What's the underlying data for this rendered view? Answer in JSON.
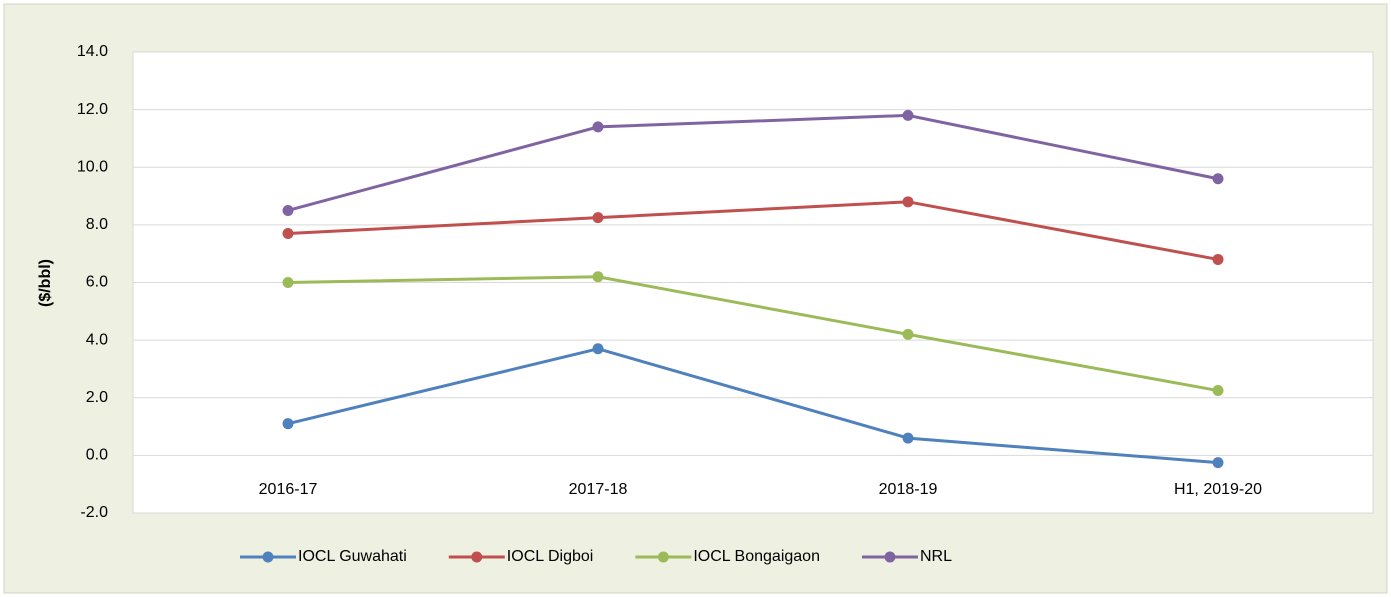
{
  "chart_data": {
    "type": "line",
    "y_label": "($/bbl)",
    "categories": [
      "2016-17",
      "2017-18",
      "2018-19",
      "H1, 2019-20"
    ],
    "series": [
      {
        "name": "IOCL Guwahati",
        "color": "#4f81bd",
        "values": [
          1.1,
          3.7,
          0.6,
          -0.25
        ]
      },
      {
        "name": "IOCL Digboi",
        "color": "#c0504d",
        "values": [
          7.7,
          8.25,
          8.8,
          6.8
        ]
      },
      {
        "name": "IOCL Bongaigaon",
        "color": "#9bbb59",
        "values": [
          6.0,
          6.2,
          4.2,
          2.25
        ]
      },
      {
        "name": "NRL",
        "color": "#8064a2",
        "values": [
          8.5,
          11.4,
          11.8,
          9.6
        ]
      }
    ],
    "ylim": [
      -2,
      14
    ],
    "yticks": [
      {
        "value": -2,
        "label": "-2.0"
      },
      {
        "value": 0,
        "label": "0.0"
      },
      {
        "value": 2,
        "label": "2.0"
      },
      {
        "value": 4,
        "label": "4.0"
      },
      {
        "value": 6,
        "label": "6.0"
      },
      {
        "value": 8,
        "label": "8.0"
      },
      {
        "value": 10,
        "label": "10.0"
      },
      {
        "value": 12,
        "label": "12.0"
      },
      {
        "value": 14,
        "label": "14.0"
      }
    ],
    "grid": true,
    "legend": "bottom"
  }
}
